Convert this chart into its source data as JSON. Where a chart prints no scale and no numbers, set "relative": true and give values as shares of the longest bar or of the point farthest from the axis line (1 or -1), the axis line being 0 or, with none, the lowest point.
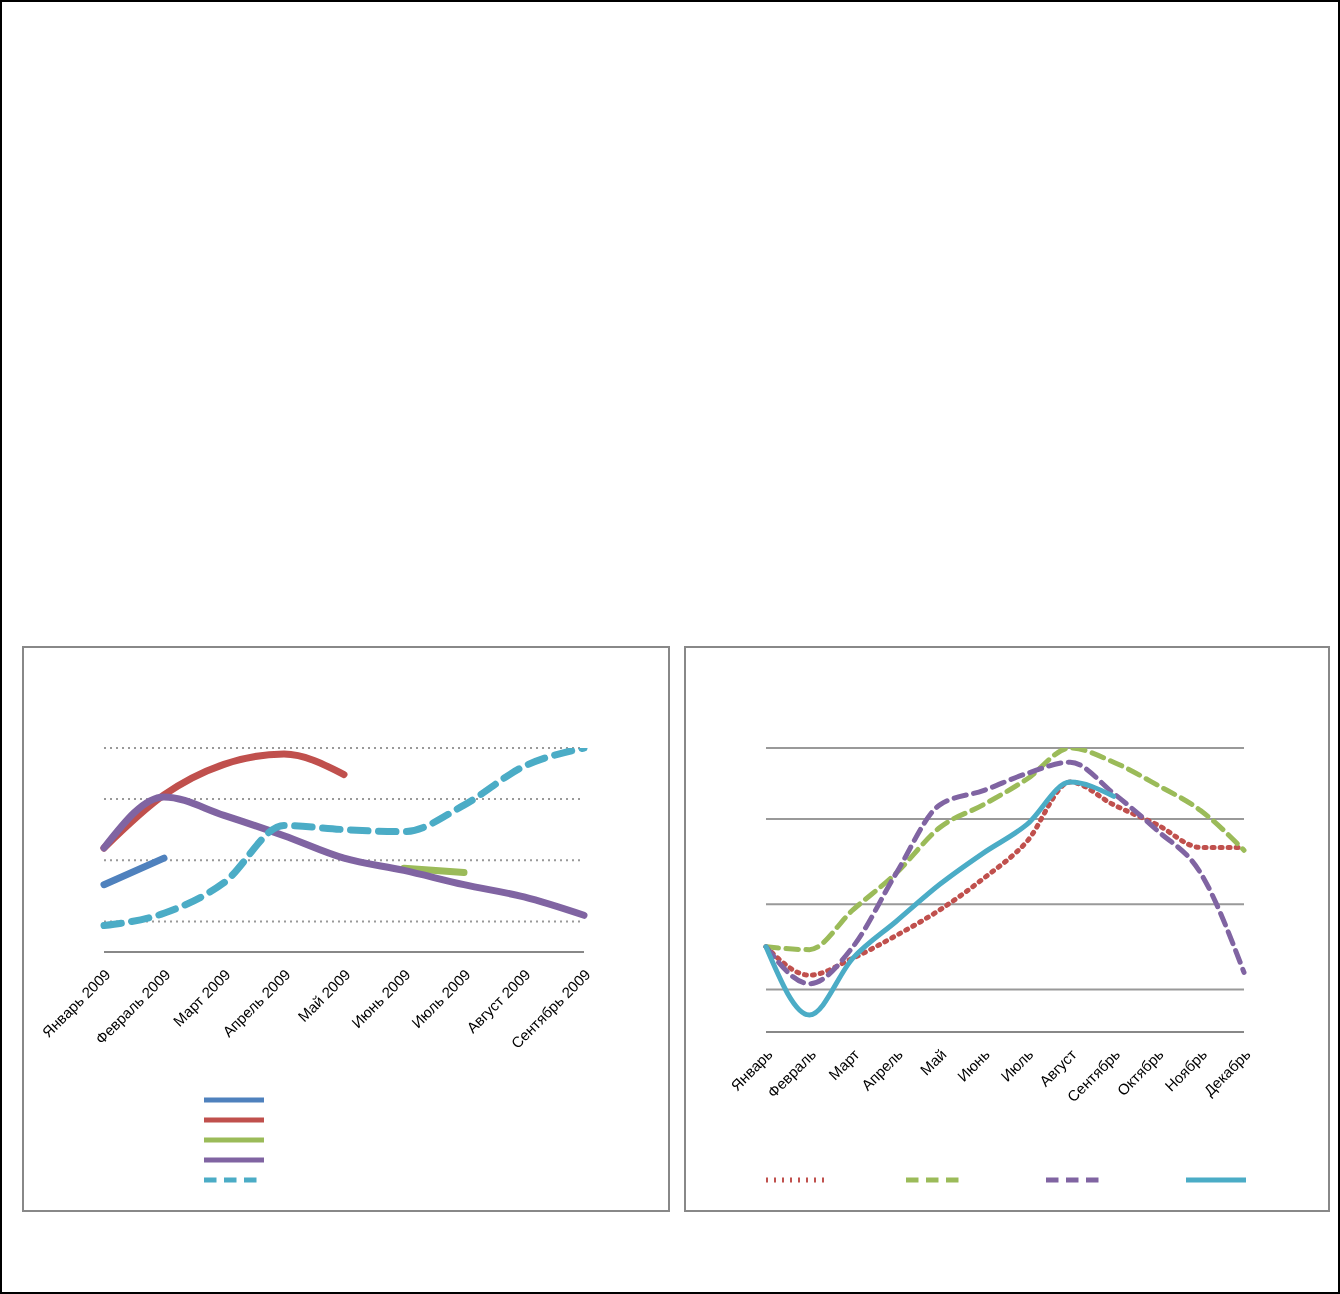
{
  "chart_data": [
    {
      "type": "line",
      "relative": true,
      "grid": "y",
      "categories": [
        "Январь 2009",
        "Февраль 2009",
        "Март 2009",
        "Апрель 2009",
        "Май 2009",
        "Июнь 2009",
        "Июль 2009",
        "Август 2009",
        "Сентябрь 2009"
      ],
      "series": [
        {
          "color": "#4f81bd",
          "line_style": "solid",
          "values": [
            0.33,
            0.46,
            null,
            null,
            null,
            null,
            null,
            null,
            null
          ]
        },
        {
          "color": "#c0504d",
          "line_style": "solid",
          "values": [
            0.51,
            0.77,
            0.92,
            0.97,
            0.87,
            null,
            null,
            null,
            null
          ]
        },
        {
          "color": "#9bbb59",
          "line_style": "solid",
          "values": [
            null,
            null,
            null,
            null,
            null,
            0.41,
            0.39,
            null,
            null
          ]
        },
        {
          "color": "#8064a2",
          "line_style": "solid",
          "values": [
            0.51,
            0.76,
            0.67,
            0.57,
            0.46,
            0.4,
            0.33,
            0.27,
            0.18
          ]
        },
        {
          "color": "#4bacc6",
          "line_style": "dashed",
          "values": [
            0.13,
            0.19,
            0.34,
            0.62,
            0.6,
            0.59,
            0.72,
            0.91,
            1.0
          ]
        }
      ]
    },
    {
      "type": "line",
      "relative": true,
      "grid": "y",
      "categories": [
        "Январь",
        "Февраль",
        "Март",
        "Апрель",
        "Май",
        "Июнь",
        "Июль",
        "Август",
        "Сентябрь",
        "Октябрь",
        "Ноябрь",
        "Декабрь"
      ],
      "series": [
        {
          "color": "#c0504d",
          "line_style": "dotted",
          "values": [
            0.3,
            0.2,
            0.26,
            0.34,
            0.43,
            0.54,
            0.67,
            0.88,
            0.8,
            0.73,
            0.65,
            0.65
          ]
        },
        {
          "color": "#9bbb59",
          "line_style": "dashed",
          "values": [
            0.3,
            0.29,
            0.43,
            0.56,
            0.72,
            0.8,
            0.89,
            1.0,
            0.95,
            0.87,
            0.78,
            0.64
          ]
        },
        {
          "color": "#8064a2",
          "line_style": "dashed",
          "values": [
            0.3,
            0.17,
            0.3,
            0.56,
            0.8,
            0.85,
            0.91,
            0.95,
            0.84,
            0.71,
            0.56,
            0.21
          ]
        },
        {
          "color": "#4bacc6",
          "line_style": "solid",
          "values": [
            0.3,
            0.06,
            0.26,
            0.39,
            0.52,
            0.63,
            0.73,
            0.88,
            0.83,
            null,
            null,
            null
          ]
        }
      ]
    }
  ]
}
